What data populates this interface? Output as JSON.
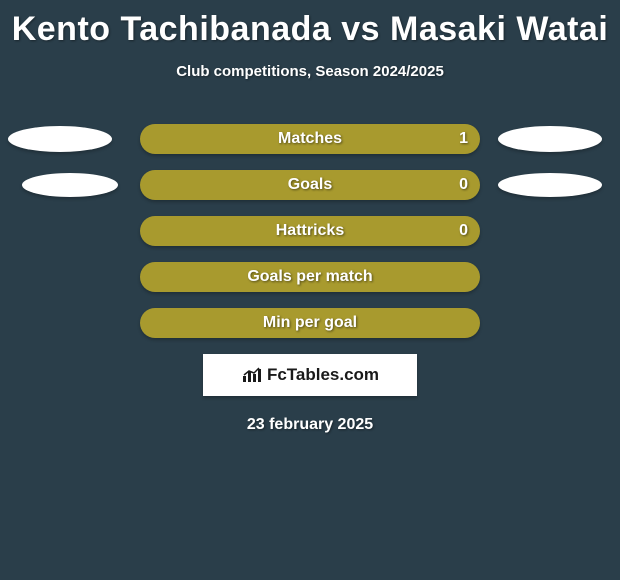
{
  "title": "Kento Tachibanada vs Masaki Watai",
  "subtitle": "Club competitions, Season 2024/2025",
  "background_color": "#2a3e4a",
  "bar_color": "#a89a2e",
  "ellipse_color": "#ffffff",
  "text_color": "#ffffff",
  "title_fontsize": 34,
  "subtitle_fontsize": 15,
  "label_fontsize": 16,
  "rows": [
    {
      "label": "Matches",
      "value": "1",
      "show_value": true,
      "left_ellipse": "lg",
      "right_ellipse": "lg"
    },
    {
      "label": "Goals",
      "value": "0",
      "show_value": true,
      "left_ellipse": "sm",
      "right_ellipse": "sm"
    },
    {
      "label": "Hattricks",
      "value": "0",
      "show_value": true,
      "left_ellipse": null,
      "right_ellipse": null
    },
    {
      "label": "Goals per match",
      "value": "",
      "show_value": false,
      "left_ellipse": null,
      "right_ellipse": null
    },
    {
      "label": "Min per goal",
      "value": "",
      "show_value": false,
      "left_ellipse": null,
      "right_ellipse": null
    }
  ],
  "logo": "FcTables.com",
  "date": "23 february 2025"
}
